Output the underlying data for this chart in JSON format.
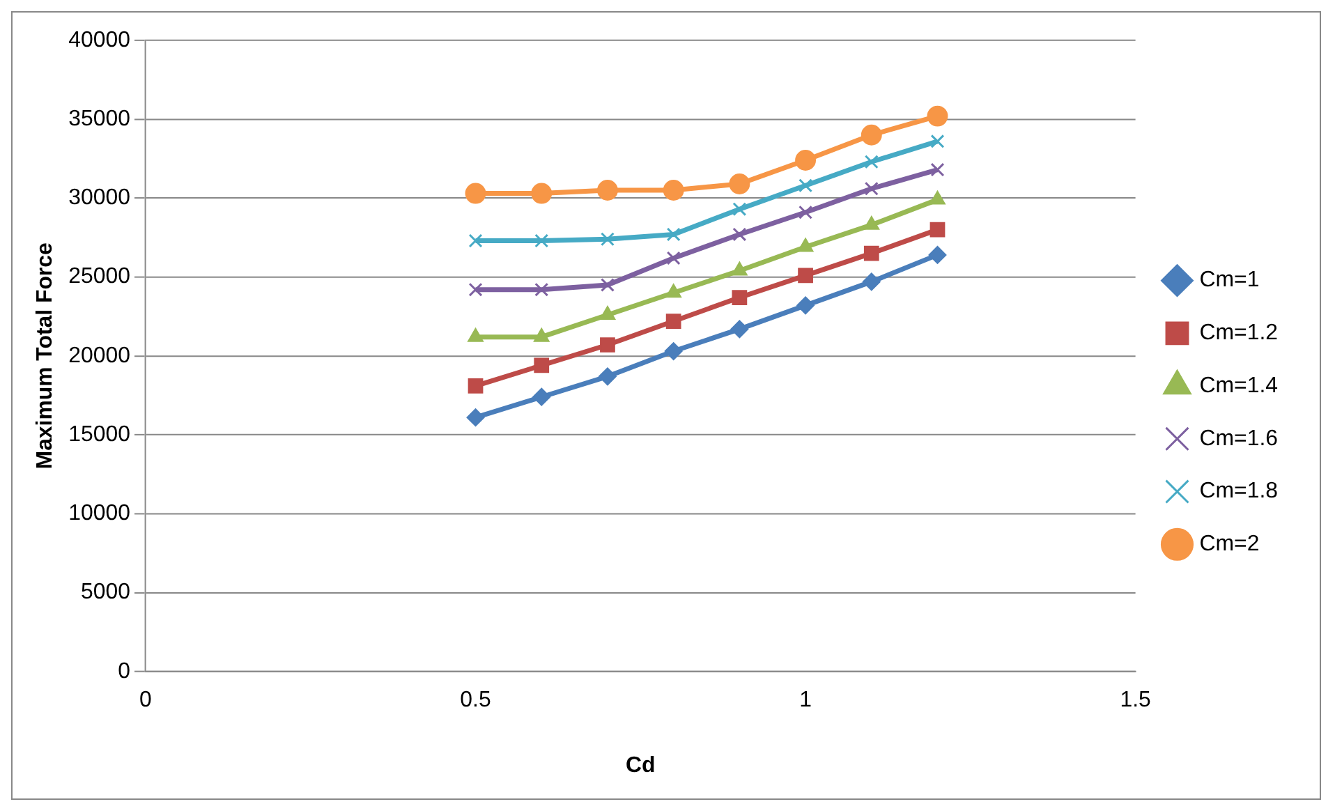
{
  "chart_data": {
    "type": "line",
    "xlabel": "Cd",
    "ylabel": "Maximum Total Force",
    "x": [
      0.5,
      0.6,
      0.7,
      0.8,
      0.9,
      1.0,
      1.1,
      1.2
    ],
    "xlim": [
      0,
      1.5
    ],
    "xticks": [
      0,
      0.5,
      1,
      1.5
    ],
    "ylim": [
      0,
      40000
    ],
    "yticks": [
      0,
      5000,
      10000,
      15000,
      20000,
      25000,
      30000,
      35000,
      40000
    ],
    "grid": "y",
    "legend": "right",
    "series": [
      {
        "name": "Cm=1",
        "color": "#4a7ebb",
        "marker": "diamond",
        "values": [
          16100,
          17400,
          18700,
          20300,
          21700,
          23200,
          24700,
          26400
        ]
      },
      {
        "name": "Cm=1.2",
        "color": "#be4b48",
        "marker": "square",
        "values": [
          18100,
          19400,
          20700,
          22200,
          23700,
          25100,
          26500,
          28000
        ]
      },
      {
        "name": "Cm=1.4",
        "color": "#98b954",
        "marker": "triangle",
        "values": [
          21200,
          21200,
          22600,
          24000,
          25400,
          26900,
          28300,
          29900
        ]
      },
      {
        "name": "Cm=1.6",
        "color": "#7d60a0",
        "marker": "cross",
        "values": [
          24200,
          24200,
          24500,
          26200,
          27700,
          29100,
          30600,
          31800
        ]
      },
      {
        "name": "Cm=1.8",
        "color": "#46aac5",
        "marker": "cross",
        "values": [
          27300,
          27300,
          27400,
          27700,
          29300,
          30800,
          32300,
          33600
        ]
      },
      {
        "name": "Cm=2",
        "color": "#f79646",
        "marker": "circle",
        "values": [
          30300,
          30300,
          30500,
          30500,
          30900,
          32400,
          34000,
          35200
        ]
      }
    ]
  }
}
